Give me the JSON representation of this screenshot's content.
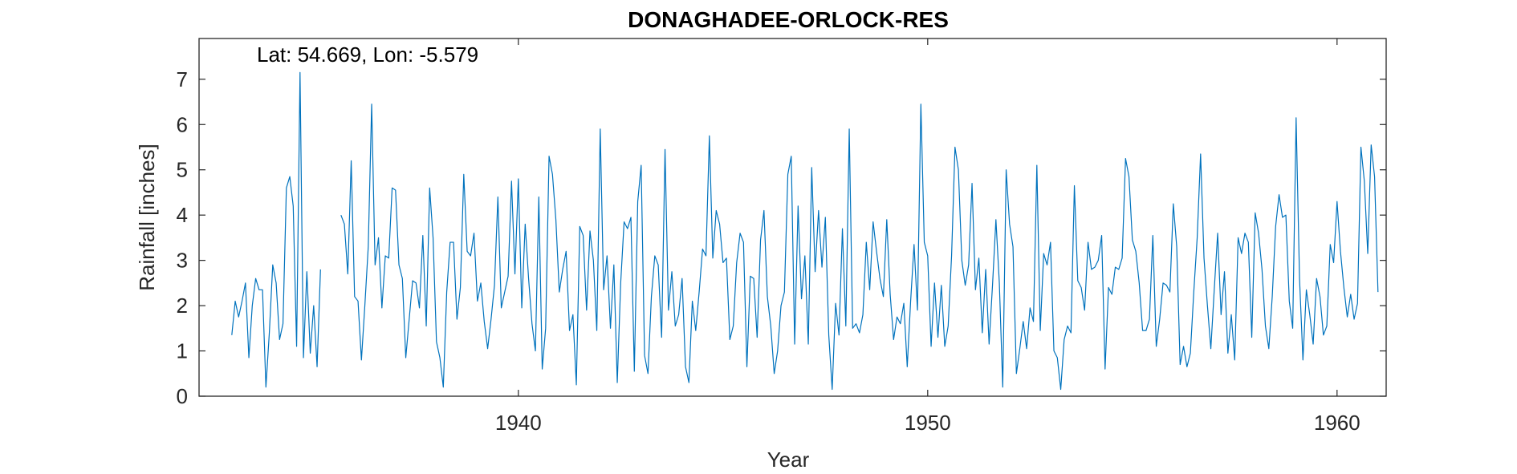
{
  "chart_data": {
    "type": "line",
    "title": "DONAGHADEE-ORLOCK-RES",
    "xlabel": "Year",
    "ylabel": "Rainfall [inches]",
    "annotation": "Lat: 54.669, Lon: -5.579",
    "xlim": [
      1932.2,
      1961.2
    ],
    "ylim": [
      0,
      7.9
    ],
    "xticks": [
      1940,
      1950,
      1960
    ],
    "yticks": [
      0,
      1,
      2,
      3,
      4,
      5,
      6,
      7
    ],
    "grid": false,
    "line_color": "#0072BD",
    "start_year": 1933,
    "series": [
      {
        "values": [
          1.35,
          2.1,
          1.75,
          2.1,
          2.5,
          0.85,
          2.0,
          2.6,
          2.35,
          2.35,
          0.2,
          1.4,
          2.9,
          2.5,
          1.25,
          1.6,
          4.6,
          4.85,
          4.2,
          1.1,
          7.15,
          0.85,
          2.75,
          0.95,
          2.0,
          0.65,
          2.8,
          null,
          null,
          null,
          null,
          null,
          4.0,
          3.8,
          2.7,
          5.2,
          2.2,
          2.1,
          0.8,
          2.0,
          3.3,
          6.45,
          2.9,
          3.5,
          1.95,
          3.1,
          3.05,
          4.6,
          4.55,
          2.9,
          2.6,
          0.85,
          1.7,
          2.55,
          2.5,
          1.95,
          3.55,
          1.55,
          4.6,
          3.5,
          1.2,
          0.85,
          0.2,
          2.3,
          3.4,
          3.4,
          1.7,
          2.4,
          4.9,
          3.2,
          3.1,
          3.6,
          2.1,
          2.5,
          1.65,
          1.05,
          1.7,
          2.45,
          4.4,
          1.95,
          2.3,
          2.65,
          4.75,
          2.7,
          4.8,
          1.95,
          3.8,
          2.6,
          1.6,
          1.0,
          4.4,
          0.6,
          1.5,
          5.3,
          4.9,
          3.9,
          2.3,
          2.8,
          3.2,
          1.45,
          1.8,
          0.25,
          3.75,
          3.55,
          1.9,
          3.65,
          3.0,
          1.45,
          5.9,
          2.35,
          3.1,
          1.5,
          2.9,
          0.3,
          2.5,
          3.85,
          3.7,
          3.95,
          0.55,
          4.3,
          5.1,
          0.9,
          0.5,
          2.2,
          3.1,
          2.9,
          1.3,
          5.45,
          1.9,
          2.75,
          1.55,
          1.8,
          2.6,
          0.65,
          0.3,
          2.1,
          1.45,
          2.3,
          3.25,
          3.1,
          5.75,
          3.05,
          4.1,
          3.8,
          2.95,
          3.05,
          1.25,
          1.55,
          2.95,
          3.6,
          3.4,
          0.65,
          2.65,
          2.6,
          1.3,
          3.45,
          4.1,
          2.2,
          1.55,
          0.5,
          1.0,
          2.0,
          2.3,
          4.9,
          5.3,
          1.15,
          4.2,
          2.15,
          3.1,
          1.15,
          5.05,
          2.75,
          4.1,
          2.85,
          3.95,
          1.35,
          0.15,
          2.05,
          1.35,
          3.7,
          1.55,
          5.9,
          1.5,
          1.6,
          1.4,
          1.8,
          3.4,
          2.35,
          3.85,
          3.2,
          2.6,
          2.2,
          3.9,
          2.25,
          1.25,
          1.75,
          1.6,
          2.05,
          0.65,
          2.1,
          3.35,
          1.9,
          6.45,
          3.4,
          3.1,
          1.1,
          2.5,
          1.3,
          2.45,
          1.1,
          1.55,
          3.1,
          5.5,
          5.0,
          3.0,
          2.45,
          2.9,
          4.7,
          2.35,
          3.05,
          1.4,
          2.8,
          1.15,
          2.45,
          3.9,
          2.5,
          0.2,
          5.0,
          3.8,
          3.3,
          0.5,
          1.05,
          1.65,
          1.05,
          1.95,
          1.65,
          5.1,
          1.45,
          3.15,
          2.9,
          3.4,
          1.0,
          0.85,
          0.15,
          1.25,
          1.55,
          1.4,
          4.65,
          2.55,
          2.4,
          1.9,
          3.4,
          2.8,
          2.85,
          3.0,
          3.55,
          0.6,
          2.4,
          2.25,
          2.85,
          2.8,
          3.05,
          5.25,
          4.85,
          3.45,
          3.2,
          2.5,
          1.45,
          1.45,
          1.7,
          3.55,
          1.1,
          1.7,
          2.5,
          2.45,
          2.3,
          4.25,
          3.3,
          0.7,
          1.1,
          0.65,
          0.95,
          2.3,
          3.5,
          5.35,
          3.05,
          2.0,
          1.05,
          2.35,
          3.6,
          1.8,
          2.75,
          0.95,
          1.8,
          0.8,
          3.5,
          3.15,
          3.6,
          3.4,
          1.3,
          4.05,
          3.6,
          2.8,
          1.55,
          1.05,
          2.2,
          3.75,
          4.45,
          3.95,
          4.0,
          2.1,
          1.5,
          6.15,
          2.6,
          0.8,
          2.35,
          1.8,
          1.15,
          2.6,
          2.2,
          1.35,
          1.55,
          3.35,
          2.95,
          4.3,
          3.2,
          2.4,
          1.75,
          2.25,
          1.7,
          2.05,
          5.5,
          4.75,
          3.15,
          5.55,
          4.85,
          2.3
        ]
      }
    ]
  }
}
